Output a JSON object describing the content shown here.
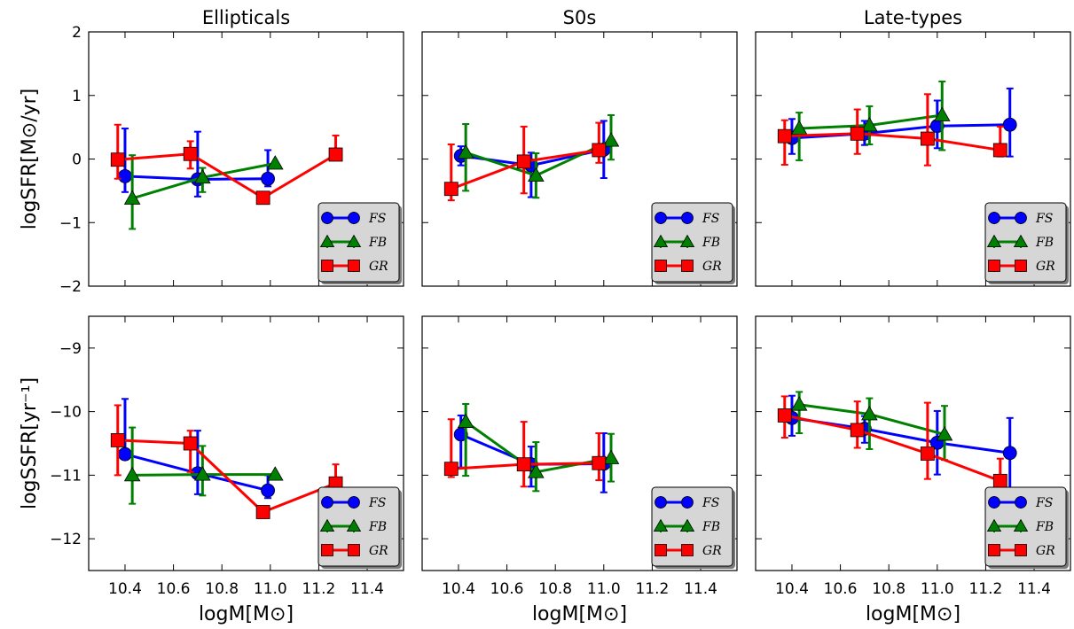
{
  "figure": {
    "x_tick_labels": [
      "10.4",
      "10.6",
      "10.8",
      "11.0",
      "11.2",
      "11.4"
    ],
    "y_tick_labels_top": [
      "2",
      "1",
      "0",
      "−1",
      "−2"
    ],
    "y_tick_labels_bottom": [
      "−9",
      "−10",
      "−11",
      "−12"
    ]
  },
  "chart_data": [
    {
      "type": "line",
      "panel": "top-left",
      "title": "Ellipticals",
      "ylabel": "logSFR[M⊙/yr]",
      "xlabel": "",
      "xlim": [
        10.25,
        11.55
      ],
      "ylim": [
        -2,
        2
      ],
      "legend": {
        "placement": "bottom-right",
        "entries": [
          "FS",
          "FB",
          "GR"
        ]
      },
      "series": [
        {
          "name": "FS",
          "color": "#0000ff",
          "marker": "circle",
          "x": [
            10.4,
            10.7,
            10.99
          ],
          "y": [
            -0.27,
            -0.32,
            -0.31
          ],
          "yerr_low": [
            0.25,
            0.27,
            0.12
          ],
          "yerr_high": [
            0.75,
            0.75,
            0.45
          ]
        },
        {
          "name": "FB",
          "color": "#008000",
          "marker": "triangle",
          "x": [
            10.43,
            10.72,
            11.02
          ],
          "y": [
            -0.62,
            -0.29,
            -0.07
          ],
          "yerr_low": [
            0.48,
            0.23,
            0.0
          ],
          "yerr_high": [
            0.68,
            0.15,
            0.0
          ]
        },
        {
          "name": "GR",
          "color": "#ff0000",
          "marker": "square",
          "x": [
            10.37,
            10.67,
            10.97,
            11.27
          ],
          "y": [
            -0.01,
            0.08,
            -0.61,
            0.07
          ],
          "yerr_low": [
            0.3,
            0.23,
            0.0,
            0.05
          ],
          "yerr_high": [
            0.55,
            0.2,
            0.0,
            0.3
          ]
        }
      ]
    },
    {
      "type": "line",
      "panel": "top-middle",
      "title": "S0s",
      "ylabel": "",
      "xlabel": "",
      "xlim": [
        10.25,
        11.55
      ],
      "ylim": [
        -2,
        2
      ],
      "legend": {
        "placement": "bottom-right",
        "entries": [
          "FS",
          "FB",
          "GR"
        ]
      },
      "series": [
        {
          "name": "FS",
          "color": "#0000ff",
          "marker": "circle",
          "x": [
            10.41,
            10.7,
            11.0
          ],
          "y": [
            0.05,
            -0.1,
            0.15
          ],
          "yerr_low": [
            0.15,
            0.5,
            0.45
          ],
          "yerr_high": [
            0.15,
            0.2,
            0.45
          ]
        },
        {
          "name": "FB",
          "color": "#008000",
          "marker": "triangle",
          "x": [
            10.43,
            10.72,
            11.03
          ],
          "y": [
            0.1,
            -0.26,
            0.29
          ],
          "yerr_low": [
            0.6,
            0.35,
            0.3
          ],
          "yerr_high": [
            0.45,
            0.35,
            0.4
          ]
        },
        {
          "name": "GR",
          "color": "#ff0000",
          "marker": "square",
          "x": [
            10.37,
            10.67,
            10.98
          ],
          "y": [
            -0.47,
            -0.04,
            0.14
          ],
          "yerr_low": [
            0.18,
            0.5,
            0.2
          ],
          "yerr_high": [
            0.7,
            0.55,
            0.43
          ]
        }
      ]
    },
    {
      "type": "line",
      "panel": "top-right",
      "title": "Late-types",
      "ylabel": "",
      "xlabel": "",
      "xlim": [
        10.25,
        11.55
      ],
      "ylim": [
        -2,
        2
      ],
      "legend": {
        "placement": "bottom-right",
        "entries": [
          "FS",
          "FB",
          "GR"
        ]
      },
      "series": [
        {
          "name": "FS",
          "color": "#0000ff",
          "marker": "circle",
          "x": [
            10.4,
            10.7,
            11.0,
            11.3
          ],
          "y": [
            0.33,
            0.4,
            0.52,
            0.54
          ],
          "yerr_low": [
            0.25,
            0.18,
            0.35,
            0.5
          ],
          "yerr_high": [
            0.3,
            0.2,
            0.4,
            0.57
          ]
        },
        {
          "name": "FB",
          "color": "#008000",
          "marker": "triangle",
          "x": [
            10.43,
            10.72,
            11.02
          ],
          "y": [
            0.48,
            0.53,
            0.69
          ],
          "yerr_low": [
            0.5,
            0.3,
            0.55
          ],
          "yerr_high": [
            0.25,
            0.3,
            0.53
          ]
        },
        {
          "name": "GR",
          "color": "#ff0000",
          "marker": "square",
          "x": [
            10.37,
            10.67,
            10.96,
            11.26
          ],
          "y": [
            0.36,
            0.4,
            0.32,
            0.14
          ],
          "yerr_low": [
            0.45,
            0.32,
            0.42,
            0.1
          ],
          "yerr_high": [
            0.25,
            0.38,
            0.7,
            0.37
          ]
        }
      ]
    },
    {
      "type": "line",
      "panel": "bottom-left",
      "title": "",
      "ylabel": "logSSFR[yr⁻¹]",
      "xlabel": "logM[M⊙]",
      "xlim": [
        10.25,
        11.55
      ],
      "ylim": [
        -12.5,
        -8.5
      ],
      "legend": {
        "placement": "bottom-right",
        "entries": [
          "FS",
          "FB",
          "GR"
        ]
      },
      "series": [
        {
          "name": "FS",
          "color": "#0000ff",
          "marker": "circle",
          "x": [
            10.4,
            10.7,
            10.99
          ],
          "y": [
            -10.67,
            -10.97,
            -11.24
          ],
          "yerr_low": [
            0.08,
            0.33,
            0.12
          ],
          "yerr_high": [
            0.87,
            0.67,
            0.24
          ]
        },
        {
          "name": "FB",
          "color": "#008000",
          "marker": "triangle",
          "x": [
            10.43,
            10.72,
            11.02
          ],
          "y": [
            -11.0,
            -10.99,
            -10.99
          ],
          "yerr_low": [
            0.45,
            0.33,
            0.0
          ],
          "yerr_high": [
            0.75,
            0.45,
            0.0
          ]
        },
        {
          "name": "GR",
          "color": "#ff0000",
          "marker": "square",
          "x": [
            10.37,
            10.67,
            10.97,
            11.27
          ],
          "y": [
            -10.45,
            -10.5,
            -11.58,
            -11.13
          ],
          "yerr_low": [
            0.55,
            0.45,
            0.0,
            0.1
          ],
          "yerr_high": [
            0.55,
            0.2,
            0.0,
            0.3
          ]
        }
      ]
    },
    {
      "type": "line",
      "panel": "bottom-middle",
      "title": "",
      "ylabel": "",
      "xlabel": "logM[M⊙]",
      "xlim": [
        10.25,
        11.55
      ],
      "ylim": [
        -12.5,
        -8.5
      ],
      "legend": {
        "placement": "bottom-right",
        "entries": [
          "FS",
          "FB",
          "GR"
        ]
      },
      "series": [
        {
          "name": "FS",
          "color": "#0000ff",
          "marker": "circle",
          "x": [
            10.41,
            10.7,
            11.0
          ],
          "y": [
            -10.36,
            -10.83,
            -10.82
          ],
          "yerr_low": [
            0.52,
            0.35,
            0.45
          ],
          "yerr_high": [
            0.3,
            0.28,
            0.48
          ]
        },
        {
          "name": "FB",
          "color": "#008000",
          "marker": "triangle",
          "x": [
            10.43,
            10.72,
            11.03
          ],
          "y": [
            -10.16,
            -10.95,
            -10.73
          ],
          "yerr_low": [
            0.85,
            0.3,
            0.37
          ],
          "yerr_high": [
            0.28,
            0.47,
            0.38
          ]
        },
        {
          "name": "GR",
          "color": "#ff0000",
          "marker": "square",
          "x": [
            10.37,
            10.67,
            10.98
          ],
          "y": [
            -10.9,
            -10.83,
            -10.81
          ],
          "yerr_low": [
            0.13,
            0.35,
            0.27
          ],
          "yerr_high": [
            0.78,
            0.67,
            0.47
          ]
        }
      ]
    },
    {
      "type": "line",
      "panel": "bottom-right",
      "title": "",
      "ylabel": "",
      "xlabel": "logM[M⊙]",
      "xlim": [
        10.25,
        11.55
      ],
      "ylim": [
        -12.5,
        -8.5
      ],
      "legend": {
        "placement": "bottom-right",
        "entries": [
          "FS",
          "FB",
          "GR"
        ]
      },
      "series": [
        {
          "name": "FS",
          "color": "#0000ff",
          "marker": "circle",
          "x": [
            10.4,
            10.7,
            11.0,
            11.3
          ],
          "y": [
            -10.1,
            -10.27,
            -10.49,
            -10.65
          ],
          "yerr_low": [
            0.28,
            0.22,
            0.5,
            0.75
          ],
          "yerr_high": [
            0.35,
            0.2,
            0.5,
            0.55
          ]
        },
        {
          "name": "FB",
          "color": "#008000",
          "marker": "triangle",
          "x": [
            10.43,
            10.72,
            11.03
          ],
          "y": [
            -9.89,
            -10.04,
            -10.36
          ],
          "yerr_low": [
            0.45,
            0.55,
            0.4
          ],
          "yerr_high": [
            0.2,
            0.25,
            0.45
          ]
        },
        {
          "name": "GR",
          "color": "#ff0000",
          "marker": "square",
          "x": [
            10.37,
            10.67,
            10.96,
            11.26
          ],
          "y": [
            -10.06,
            -10.29,
            -10.66,
            -11.09
          ],
          "yerr_low": [
            0.35,
            0.28,
            0.4,
            0.3
          ],
          "yerr_high": [
            0.3,
            0.45,
            0.8,
            0.35
          ]
        }
      ]
    }
  ]
}
